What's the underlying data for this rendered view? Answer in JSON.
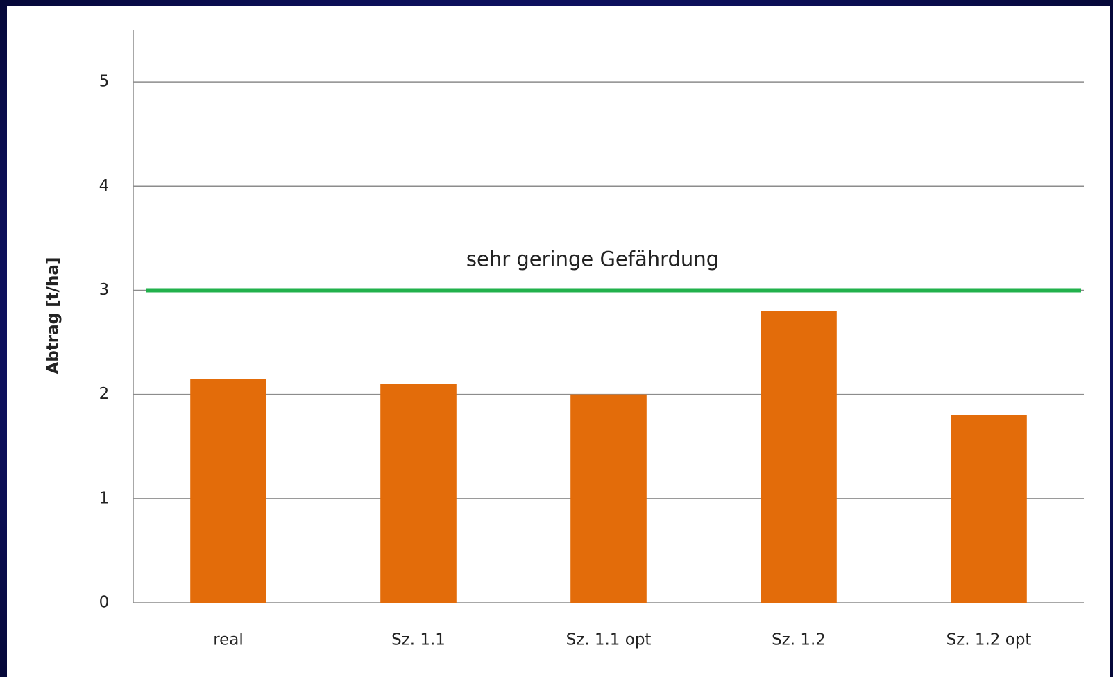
{
  "chart_data": {
    "type": "bar",
    "y_label": "Abtrag [t/ha]",
    "categories": [
      "real",
      "Sz. 1.1",
      "Sz. 1.1 opt",
      "Sz. 1.2",
      "Sz. 1.2 opt"
    ],
    "values": [
      2.15,
      2.1,
      2.0,
      2.8,
      1.8
    ],
    "color": "#e36c0a",
    "ylim": [
      0,
      5.5
    ],
    "yticks": [
      0,
      1,
      2,
      3,
      4,
      5
    ],
    "grid": true,
    "reference_line": {
      "value": 3,
      "label": "sehr geringe Gefährdung",
      "color": "#22b14c"
    }
  }
}
